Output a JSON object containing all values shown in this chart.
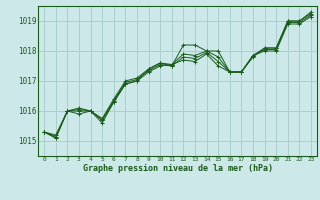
{
  "title": "",
  "xlabel": "Graphe pression niveau de la mer (hPa)",
  "bg_color": "#cce8e8",
  "grid_color": "#aacfcf",
  "line_color": "#1a5c1a",
  "marker_color": "#1a5c1a",
  "xlim": [
    -0.5,
    23.5
  ],
  "ylim": [
    1014.5,
    1019.5
  ],
  "yticks": [
    1015,
    1016,
    1017,
    1018,
    1019
  ],
  "xticks": [
    0,
    1,
    2,
    3,
    4,
    5,
    6,
    7,
    8,
    9,
    10,
    11,
    12,
    13,
    14,
    15,
    16,
    17,
    18,
    19,
    20,
    21,
    22,
    23
  ],
  "series": [
    [
      1015.3,
      1015.1,
      1016.0,
      1015.9,
      1016.0,
      1015.6,
      1016.3,
      1016.9,
      1017.0,
      1017.4,
      1017.6,
      1017.5,
      1018.2,
      1018.2,
      1018.0,
      1018.0,
      1017.3,
      1017.3,
      1017.8,
      1018.1,
      1018.1,
      1019.0,
      1019.0,
      1019.3
    ],
    [
      1015.3,
      1015.1,
      1016.0,
      1016.0,
      1016.0,
      1015.7,
      1016.3,
      1016.9,
      1017.0,
      1017.3,
      1017.5,
      1017.55,
      1017.9,
      1017.85,
      1018.0,
      1017.8,
      1017.3,
      1017.3,
      1017.85,
      1018.1,
      1018.1,
      1019.0,
      1019.0,
      1019.25
    ],
    [
      1015.3,
      1015.15,
      1016.0,
      1016.05,
      1016.0,
      1015.7,
      1016.35,
      1016.95,
      1017.05,
      1017.35,
      1017.55,
      1017.5,
      1017.8,
      1017.75,
      1017.95,
      1017.65,
      1017.3,
      1017.3,
      1017.85,
      1018.05,
      1018.05,
      1018.95,
      1018.95,
      1019.2
    ],
    [
      1015.3,
      1015.2,
      1016.0,
      1016.1,
      1016.0,
      1015.75,
      1016.4,
      1017.0,
      1017.1,
      1017.4,
      1017.6,
      1017.55,
      1017.7,
      1017.65,
      1017.9,
      1017.5,
      1017.3,
      1017.3,
      1017.85,
      1018.0,
      1018.0,
      1018.9,
      1018.9,
      1019.15
    ]
  ]
}
